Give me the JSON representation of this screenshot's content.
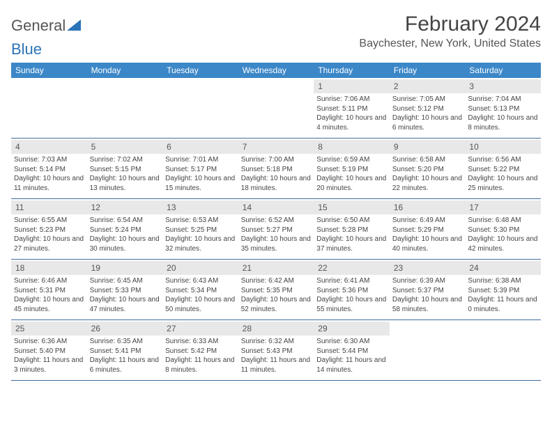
{
  "logo": {
    "text1": "General",
    "text2": "Blue"
  },
  "title": "February 2024",
  "location": "Baychester, New York, United States",
  "colors": {
    "headerBg": "#3b87c8",
    "headerText": "#ffffff",
    "dayBarBg": "#e8e8e8",
    "rowBorder": "#3b6e9b",
    "bodyText": "#444444",
    "logoText": "#555555",
    "logoBlue": "#2a74b8"
  },
  "typography": {
    "titleSize": 30,
    "locationSize": 16,
    "weekdaySize": 12,
    "dayNumSize": 12,
    "bodySize": 10
  },
  "weekdays": [
    "Sunday",
    "Monday",
    "Tuesday",
    "Wednesday",
    "Thursday",
    "Friday",
    "Saturday"
  ],
  "weeks": [
    [
      null,
      null,
      null,
      null,
      {
        "n": "1",
        "sr": "7:06 AM",
        "ss": "5:11 PM",
        "dl": "10 hours and 4 minutes."
      },
      {
        "n": "2",
        "sr": "7:05 AM",
        "ss": "5:12 PM",
        "dl": "10 hours and 6 minutes."
      },
      {
        "n": "3",
        "sr": "7:04 AM",
        "ss": "5:13 PM",
        "dl": "10 hours and 8 minutes."
      }
    ],
    [
      {
        "n": "4",
        "sr": "7:03 AM",
        "ss": "5:14 PM",
        "dl": "10 hours and 11 minutes."
      },
      {
        "n": "5",
        "sr": "7:02 AM",
        "ss": "5:15 PM",
        "dl": "10 hours and 13 minutes."
      },
      {
        "n": "6",
        "sr": "7:01 AM",
        "ss": "5:17 PM",
        "dl": "10 hours and 15 minutes."
      },
      {
        "n": "7",
        "sr": "7:00 AM",
        "ss": "5:18 PM",
        "dl": "10 hours and 18 minutes."
      },
      {
        "n": "8",
        "sr": "6:59 AM",
        "ss": "5:19 PM",
        "dl": "10 hours and 20 minutes."
      },
      {
        "n": "9",
        "sr": "6:58 AM",
        "ss": "5:20 PM",
        "dl": "10 hours and 22 minutes."
      },
      {
        "n": "10",
        "sr": "6:56 AM",
        "ss": "5:22 PM",
        "dl": "10 hours and 25 minutes."
      }
    ],
    [
      {
        "n": "11",
        "sr": "6:55 AM",
        "ss": "5:23 PM",
        "dl": "10 hours and 27 minutes."
      },
      {
        "n": "12",
        "sr": "6:54 AM",
        "ss": "5:24 PM",
        "dl": "10 hours and 30 minutes."
      },
      {
        "n": "13",
        "sr": "6:53 AM",
        "ss": "5:25 PM",
        "dl": "10 hours and 32 minutes."
      },
      {
        "n": "14",
        "sr": "6:52 AM",
        "ss": "5:27 PM",
        "dl": "10 hours and 35 minutes."
      },
      {
        "n": "15",
        "sr": "6:50 AM",
        "ss": "5:28 PM",
        "dl": "10 hours and 37 minutes."
      },
      {
        "n": "16",
        "sr": "6:49 AM",
        "ss": "5:29 PM",
        "dl": "10 hours and 40 minutes."
      },
      {
        "n": "17",
        "sr": "6:48 AM",
        "ss": "5:30 PM",
        "dl": "10 hours and 42 minutes."
      }
    ],
    [
      {
        "n": "18",
        "sr": "6:46 AM",
        "ss": "5:31 PM",
        "dl": "10 hours and 45 minutes."
      },
      {
        "n": "19",
        "sr": "6:45 AM",
        "ss": "5:33 PM",
        "dl": "10 hours and 47 minutes."
      },
      {
        "n": "20",
        "sr": "6:43 AM",
        "ss": "5:34 PM",
        "dl": "10 hours and 50 minutes."
      },
      {
        "n": "21",
        "sr": "6:42 AM",
        "ss": "5:35 PM",
        "dl": "10 hours and 52 minutes."
      },
      {
        "n": "22",
        "sr": "6:41 AM",
        "ss": "5:36 PM",
        "dl": "10 hours and 55 minutes."
      },
      {
        "n": "23",
        "sr": "6:39 AM",
        "ss": "5:37 PM",
        "dl": "10 hours and 58 minutes."
      },
      {
        "n": "24",
        "sr": "6:38 AM",
        "ss": "5:39 PM",
        "dl": "11 hours and 0 minutes."
      }
    ],
    [
      {
        "n": "25",
        "sr": "6:36 AM",
        "ss": "5:40 PM",
        "dl": "11 hours and 3 minutes."
      },
      {
        "n": "26",
        "sr": "6:35 AM",
        "ss": "5:41 PM",
        "dl": "11 hours and 6 minutes."
      },
      {
        "n": "27",
        "sr": "6:33 AM",
        "ss": "5:42 PM",
        "dl": "11 hours and 8 minutes."
      },
      {
        "n": "28",
        "sr": "6:32 AM",
        "ss": "5:43 PM",
        "dl": "11 hours and 11 minutes."
      },
      {
        "n": "29",
        "sr": "6:30 AM",
        "ss": "5:44 PM",
        "dl": "11 hours and 14 minutes."
      },
      null,
      null
    ]
  ],
  "labels": {
    "sunrise": "Sunrise: ",
    "sunset": "Sunset: ",
    "daylight": "Daylight: "
  }
}
